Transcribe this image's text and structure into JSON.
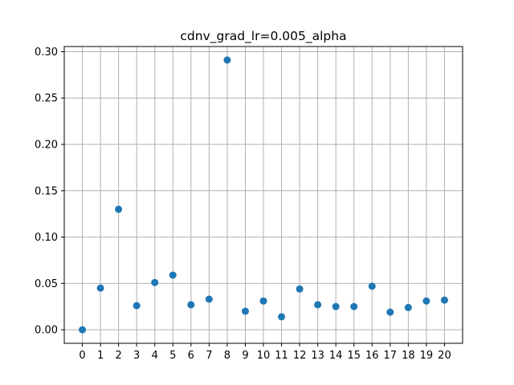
{
  "chart_data": {
    "type": "scatter",
    "title": "cdnv_grad_lr=0.005_alpha",
    "xlabel": "",
    "ylabel": "",
    "x": [
      0,
      1,
      2,
      3,
      4,
      5,
      6,
      7,
      8,
      9,
      10,
      11,
      12,
      13,
      14,
      15,
      16,
      17,
      18,
      19,
      20
    ],
    "y": [
      0.0,
      0.045,
      0.13,
      0.026,
      0.051,
      0.059,
      0.027,
      0.033,
      0.291,
      0.02,
      0.031,
      0.014,
      0.044,
      0.027,
      0.025,
      0.025,
      0.047,
      0.019,
      0.024,
      0.031,
      0.032
    ],
    "xticks": [
      "0",
      "1",
      "2",
      "3",
      "4",
      "5",
      "6",
      "7",
      "8",
      "9",
      "10",
      "11",
      "12",
      "13",
      "14",
      "15",
      "16",
      "17",
      "18",
      "19",
      "20"
    ],
    "yticks": [
      "0.00",
      "0.05",
      "0.10",
      "0.15",
      "0.20",
      "0.25",
      "0.30"
    ],
    "xlim": [
      -1,
      21
    ],
    "ylim": [
      -0.0146,
      0.3056
    ],
    "grid": true,
    "marker_color": "#1f77b4"
  }
}
